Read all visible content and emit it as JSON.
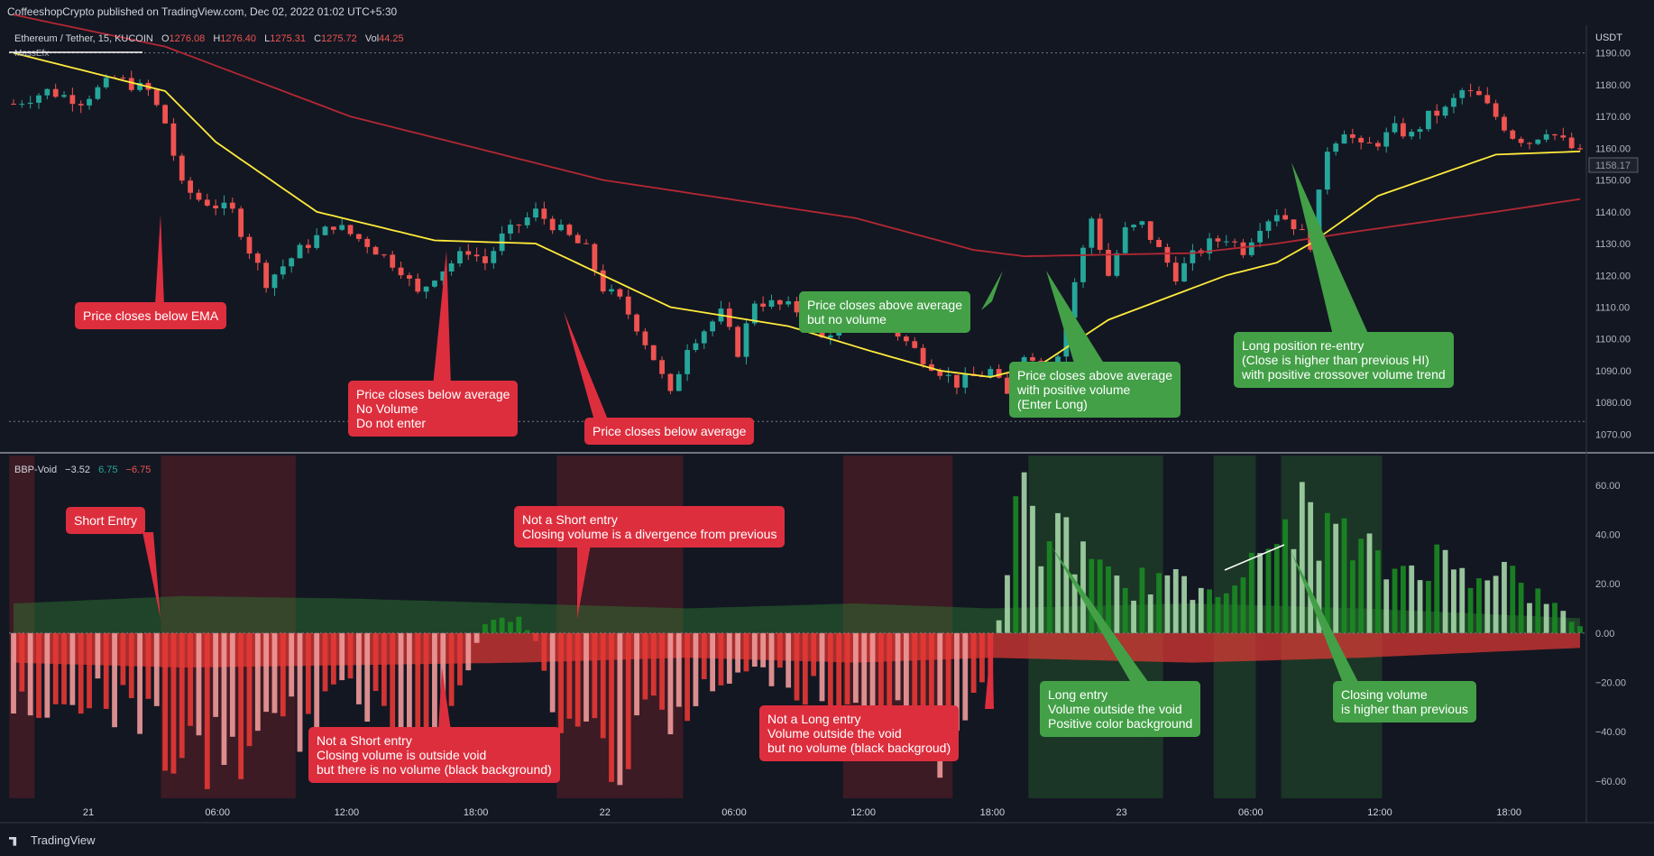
{
  "header": {
    "published": "CoffeeshopCrypto published on TradingView.com, Dec 02, 2022 01:02 UTC+5:30"
  },
  "legend": {
    "symbol": "Ethereum / Tether, 15, KUCOIN",
    "o_label": "O",
    "o": "1276.08",
    "h_label": "H",
    "h": "1276.40",
    "l_label": "L",
    "l": "1275.31",
    "c_label": "C",
    "c": "1275.72",
    "vol_label": "Vol",
    "vol": "44.25",
    "indicator": "MassEfx"
  },
  "osc_legend": {
    "name": "BBP-Void",
    "v1": "−3.52",
    "v2": "6.75",
    "v3": "−6.75"
  },
  "price_axis": {
    "unit": "USDT",
    "last_price": "1158.17"
  },
  "footer": {
    "brand": "TradingView"
  },
  "colors": {
    "bg": "#131722",
    "up": "#26a69a",
    "down": "#ef5350",
    "ema_fast": "#ffeb3b",
    "ema_slow": "#b22833",
    "ann_red": "#dd2e3e",
    "ann_green": "#43a047"
  },
  "chart_data": [
    {
      "type": "candlestick",
      "title": "Ethereum / Tether, 15, KUCOIN",
      "ylabel": "USDT",
      "ylim": [
        1065,
        1197
      ],
      "yticks": [
        1070,
        1080,
        1090,
        1100,
        1110,
        1120,
        1130,
        1140,
        1150,
        1160,
        1170,
        1180,
        1190
      ],
      "xticks": [
        "21",
        "06:00",
        "12:00",
        "18:00",
        "22",
        "06:00",
        "12:00",
        "18:00",
        "23",
        "06:00",
        "12:00",
        "18:00"
      ],
      "close_path": [
        [
          0,
          1174
        ],
        [
          4,
          1178
        ],
        [
          8,
          1175
        ],
        [
          12,
          1182
        ],
        [
          16,
          1178
        ],
        [
          18,
          1168
        ],
        [
          20,
          1148
        ],
        [
          22,
          1144
        ],
        [
          26,
          1140
        ],
        [
          28,
          1128
        ],
        [
          30,
          1118
        ],
        [
          34,
          1128
        ],
        [
          38,
          1136
        ],
        [
          42,
          1130
        ],
        [
          46,
          1122
        ],
        [
          48,
          1114
        ],
        [
          50,
          1120
        ],
        [
          54,
          1128
        ],
        [
          56,
          1124
        ],
        [
          58,
          1132
        ],
        [
          62,
          1140
        ],
        [
          64,
          1136
        ],
        [
          68,
          1128
        ],
        [
          70,
          1116
        ],
        [
          72,
          1112
        ],
        [
          74,
          1104
        ],
        [
          76,
          1094
        ],
        [
          78,
          1082
        ],
        [
          80,
          1098
        ],
        [
          84,
          1108
        ],
        [
          86,
          1096
        ],
        [
          88,
          1112
        ],
        [
          92,
          1110
        ],
        [
          94,
          1108
        ],
        [
          96,
          1100
        ],
        [
          100,
          1110
        ],
        [
          104,
          1104
        ],
        [
          108,
          1094
        ],
        [
          112,
          1086
        ],
        [
          116,
          1090
        ],
        [
          118,
          1082
        ],
        [
          120,
          1096
        ],
        [
          122,
          1090
        ],
        [
          124,
          1096
        ],
        [
          126,
          1118
        ],
        [
          128,
          1138
        ],
        [
          130,
          1120
        ],
        [
          132,
          1134
        ],
        [
          134,
          1136
        ],
        [
          136,
          1128
        ],
        [
          138,
          1120
        ],
        [
          140,
          1126
        ],
        [
          142,
          1130
        ],
        [
          144,
          1132
        ],
        [
          146,
          1128
        ],
        [
          148,
          1136
        ],
        [
          150,
          1140
        ],
        [
          152,
          1136
        ],
        [
          154,
          1130
        ],
        [
          156,
          1160
        ],
        [
          158,
          1166
        ],
        [
          160,
          1160
        ],
        [
          162,
          1162
        ],
        [
          164,
          1166
        ],
        [
          166,
          1164
        ],
        [
          168,
          1170
        ],
        [
          170,
          1172
        ],
        [
          172,
          1178
        ],
        [
          174,
          1176
        ],
        [
          176,
          1170
        ],
        [
          178,
          1164
        ],
        [
          180,
          1162
        ],
        [
          182,
          1166
        ],
        [
          184,
          1162
        ],
        [
          186,
          1158
        ]
      ],
      "ema_fast": [
        [
          0,
          1190
        ],
        [
          18,
          1178
        ],
        [
          24,
          1162
        ],
        [
          36,
          1140
        ],
        [
          50,
          1131
        ],
        [
          62,
          1130
        ],
        [
          70,
          1120
        ],
        [
          78,
          1110
        ],
        [
          92,
          1104
        ],
        [
          102,
          1096
        ],
        [
          110,
          1090
        ],
        [
          116,
          1088
        ],
        [
          122,
          1092
        ],
        [
          130,
          1106
        ],
        [
          144,
          1120
        ],
        [
          150,
          1124
        ],
        [
          154,
          1130
        ],
        [
          162,
          1145
        ],
        [
          176,
          1158
        ],
        [
          186,
          1159
        ]
      ],
      "ema_slow": [
        [
          0,
          1202
        ],
        [
          18,
          1192
        ],
        [
          40,
          1170
        ],
        [
          70,
          1150
        ],
        [
          100,
          1138
        ],
        [
          114,
          1128
        ],
        [
          120,
          1126
        ],
        [
          140,
          1127
        ],
        [
          150,
          1130
        ],
        [
          160,
          1134
        ],
        [
          176,
          1140
        ],
        [
          186,
          1144
        ]
      ],
      "levels": [
        1190,
        1074
      ]
    },
    {
      "type": "bar",
      "title": "BBP-Void",
      "ylim": [
        -67,
        72
      ],
      "yticks": [
        -60,
        -40,
        -20,
        0,
        20,
        40,
        60
      ],
      "x_count": 187,
      "values_path": [
        [
          0,
          -40
        ],
        [
          6,
          -30
        ],
        [
          12,
          -35
        ],
        [
          16,
          -40
        ],
        [
          18,
          -55
        ],
        [
          22,
          -65
        ],
        [
          28,
          -55
        ],
        [
          34,
          -45
        ],
        [
          40,
          -30
        ],
        [
          46,
          -42
        ],
        [
          52,
          -40
        ],
        [
          56,
          5
        ],
        [
          60,
          8
        ],
        [
          62,
          -5
        ],
        [
          64,
          -38
        ],
        [
          68,
          -52
        ],
        [
          72,
          -58
        ],
        [
          76,
          -45
        ],
        [
          80,
          -40
        ],
        [
          84,
          -25
        ],
        [
          90,
          -20
        ],
        [
          96,
          -30
        ],
        [
          100,
          -42
        ],
        [
          104,
          -48
        ],
        [
          110,
          -55
        ],
        [
          114,
          -35
        ],
        [
          116,
          -30
        ],
        [
          118,
          40
        ],
        [
          120,
          65
        ],
        [
          122,
          40
        ],
        [
          124,
          55
        ],
        [
          128,
          30
        ],
        [
          132,
          22
        ],
        [
          136,
          28
        ],
        [
          140,
          20
        ],
        [
          144,
          28
        ],
        [
          148,
          32
        ],
        [
          152,
          60
        ],
        [
          156,
          50
        ],
        [
          160,
          40
        ],
        [
          164,
          30
        ],
        [
          168,
          38
        ],
        [
          172,
          30
        ],
        [
          176,
          35
        ],
        [
          180,
          20
        ],
        [
          186,
          4
        ]
      ],
      "void_upper": [
        [
          0,
          12
        ],
        [
          20,
          15
        ],
        [
          40,
          14
        ],
        [
          60,
          12
        ],
        [
          80,
          10
        ],
        [
          100,
          12
        ],
        [
          116,
          10
        ],
        [
          140,
          12
        ],
        [
          160,
          10
        ],
        [
          186,
          6
        ]
      ],
      "void_lower": [
        [
          0,
          -12
        ],
        [
          20,
          -14
        ],
        [
          40,
          -13
        ],
        [
          60,
          -12
        ],
        [
          80,
          -10
        ],
        [
          100,
          -12
        ],
        [
          116,
          -10
        ],
        [
          140,
          -12
        ],
        [
          160,
          -10
        ],
        [
          186,
          -6
        ]
      ],
      "red_bg": [
        [
          0,
          2
        ],
        [
          18,
          33
        ],
        [
          65,
          77
        ],
        [
          78,
          79
        ],
        [
          99,
          111
        ]
      ],
      "green_bg": [
        [
          121,
          131
        ],
        [
          132,
          134
        ],
        [
          135,
          136
        ],
        [
          143,
          147
        ],
        [
          151,
          162
        ]
      ]
    }
  ],
  "annotations": [
    {
      "text": "Price closes below EMA",
      "color": "red"
    },
    {
      "text": "Price closes below average\nNo Volume\nDo not enter",
      "color": "red"
    },
    {
      "text": "Price closes below average",
      "color": "red"
    },
    {
      "text": "Price closes above average\nbut no volume",
      "color": "green"
    },
    {
      "text": "Price closes above average\nwith positive volume\n(Enter Long)",
      "color": "green"
    },
    {
      "text": "Long position re-entry\n(Close is higher than previous HI)\nwith positive crossover volume trend",
      "color": "green"
    },
    {
      "text": "Short Entry",
      "color": "red"
    },
    {
      "text": "Not a Short entry\nClosing volume is a divergence from previous",
      "color": "red"
    },
    {
      "text": "Not a Short entry\nClosing volume is outside void\nbut there is no volume (black background)",
      "color": "red"
    },
    {
      "text": "Not a Long entry\nVolume outside the void\nbut no volume (black backgroud)",
      "color": "red"
    },
    {
      "text": "Long entry\nVolume outside the void\nPositive color background",
      "color": "green"
    },
    {
      "text": "Closing volume\nis higher than previous",
      "color": "green"
    }
  ]
}
